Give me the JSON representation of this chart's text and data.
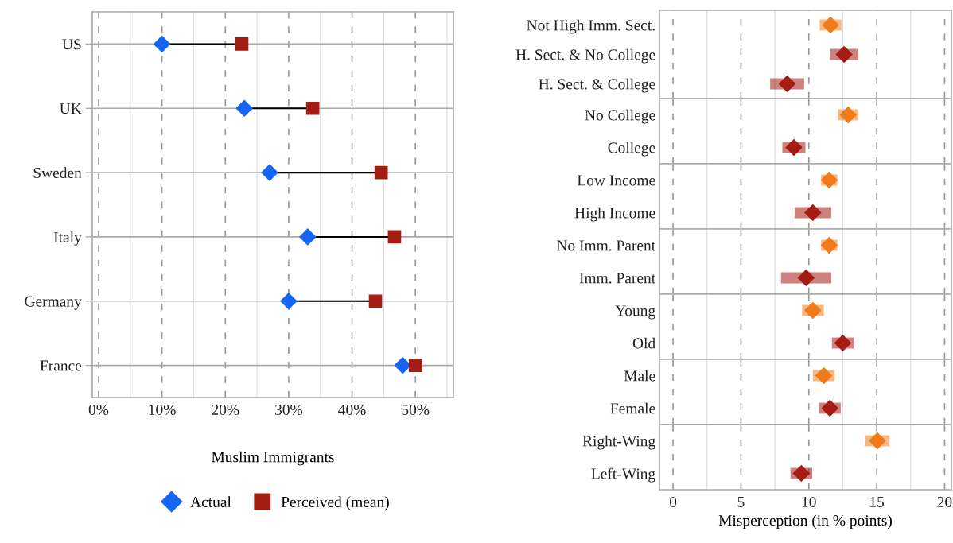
{
  "chart_data": [
    {
      "type": "scatter",
      "orientation": "horizontal",
      "xlabel": "Muslim Immigrants",
      "categories": [
        "US",
        "UK",
        "Sweden",
        "Italy",
        "Germany",
        "France"
      ],
      "xlim": [
        -1,
        56
      ],
      "xticks": [
        {
          "value": 0,
          "label": "0%"
        },
        {
          "value": 10,
          "label": "10%"
        },
        {
          "value": 20,
          "label": "20%"
        },
        {
          "value": 30,
          "label": "30%"
        },
        {
          "value": 40,
          "label": "40%"
        },
        {
          "value": 50,
          "label": "50%"
        }
      ],
      "grid": true,
      "legend": "bottom",
      "series": [
        {
          "name": "Actual",
          "color": "#1565f5",
          "marker": "diamond",
          "values": [
            10,
            23,
            27,
            33,
            30,
            48
          ]
        },
        {
          "name": "Perceived (mean)",
          "color": "#a51c12",
          "marker": "square",
          "values": [
            22.6,
            33.8,
            44.6,
            46.7,
            43.7,
            50.0
          ]
        }
      ]
    },
    {
      "type": "scatter",
      "orientation": "horizontal",
      "categories": [
        "Not High Imm. Sect.",
        "H. Sect. & No College",
        "H. Sect. & College"
      ],
      "xlim": [
        -1,
        20.5
      ],
      "xticks": [
        0,
        5,
        10,
        15,
        20
      ],
      "tick_labels": "y",
      "grid": "x",
      "marker": "diamond",
      "series": [
        {
          "colors": [
            "#f07b1a",
            "#a51c12",
            "#a51c12"
          ],
          "values": [
            11.6,
            12.6,
            8.4
          ],
          "errors": [
            0.8,
            1.05,
            1.25
          ]
        }
      ]
    },
    {
      "type": "scatter",
      "orientation": "horizontal",
      "categories": [
        "No College",
        "College"
      ],
      "xlim": [
        -1,
        20.5
      ],
      "xticks": [
        0,
        5,
        10,
        15,
        20
      ],
      "tick_labels": "y",
      "grid": "x",
      "marker": "diamond",
      "series": [
        {
          "colors": [
            "#f07b1a",
            "#a51c12"
          ],
          "values": [
            12.9,
            8.9
          ],
          "errors": [
            0.75,
            0.85
          ]
        }
      ]
    },
    {
      "type": "scatter",
      "orientation": "horizontal",
      "categories": [
        "Low Income",
        "High Income"
      ],
      "xlim": [
        -1,
        20.5
      ],
      "xticks": [
        0,
        5,
        10,
        15,
        20
      ],
      "tick_labels": "y",
      "grid": "x",
      "marker": "diamond",
      "series": [
        {
          "colors": [
            "#f07b1a",
            "#a51c12"
          ],
          "values": [
            11.5,
            10.3
          ],
          "errors": [
            0.6,
            1.35
          ]
        }
      ]
    },
    {
      "type": "scatter",
      "orientation": "horizontal",
      "categories": [
        "No Imm. Parent",
        "Imm. Parent"
      ],
      "xlim": [
        -1,
        20.5
      ],
      "xticks": [
        0,
        5,
        10,
        15,
        20
      ],
      "tick_labels": "y",
      "grid": "x",
      "marker": "diamond",
      "series": [
        {
          "colors": [
            "#f07b1a",
            "#a51c12"
          ],
          "values": [
            11.5,
            9.8
          ],
          "errors": [
            0.6,
            1.85
          ]
        }
      ]
    },
    {
      "type": "scatter",
      "orientation": "horizontal",
      "categories": [
        "Young",
        "Old"
      ],
      "xlim": [
        -1,
        20.5
      ],
      "xticks": [
        0,
        5,
        10,
        15,
        20
      ],
      "tick_labels": "y",
      "grid": "x",
      "marker": "diamond",
      "series": [
        {
          "colors": [
            "#f07b1a",
            "#a51c12"
          ],
          "values": [
            10.3,
            12.5
          ],
          "errors": [
            0.8,
            0.8
          ]
        }
      ]
    },
    {
      "type": "scatter",
      "orientation": "horizontal",
      "categories": [
        "Male",
        "Female"
      ],
      "xlim": [
        -1,
        20.5
      ],
      "xticks": [
        0,
        5,
        10,
        15,
        20
      ],
      "tick_labels": "y",
      "grid": "x",
      "marker": "diamond",
      "series": [
        {
          "colors": [
            "#f07b1a",
            "#a51c12"
          ],
          "values": [
            11.1,
            11.55
          ],
          "errors": [
            0.8,
            0.8
          ]
        }
      ]
    },
    {
      "type": "scatter",
      "orientation": "horizontal",
      "xlabel": "Misperception (in % points)",
      "categories": [
        "Right-Wing",
        "Left-Wing"
      ],
      "xlim": [
        -1,
        20.5
      ],
      "xticks": [
        0,
        5,
        10,
        15,
        20
      ],
      "grid": "x",
      "marker": "diamond",
      "series": [
        {
          "colors": [
            "#f07b1a",
            "#a51c12"
          ],
          "values": [
            15.05,
            9.45
          ],
          "errors": [
            0.9,
            0.8
          ]
        }
      ]
    }
  ]
}
